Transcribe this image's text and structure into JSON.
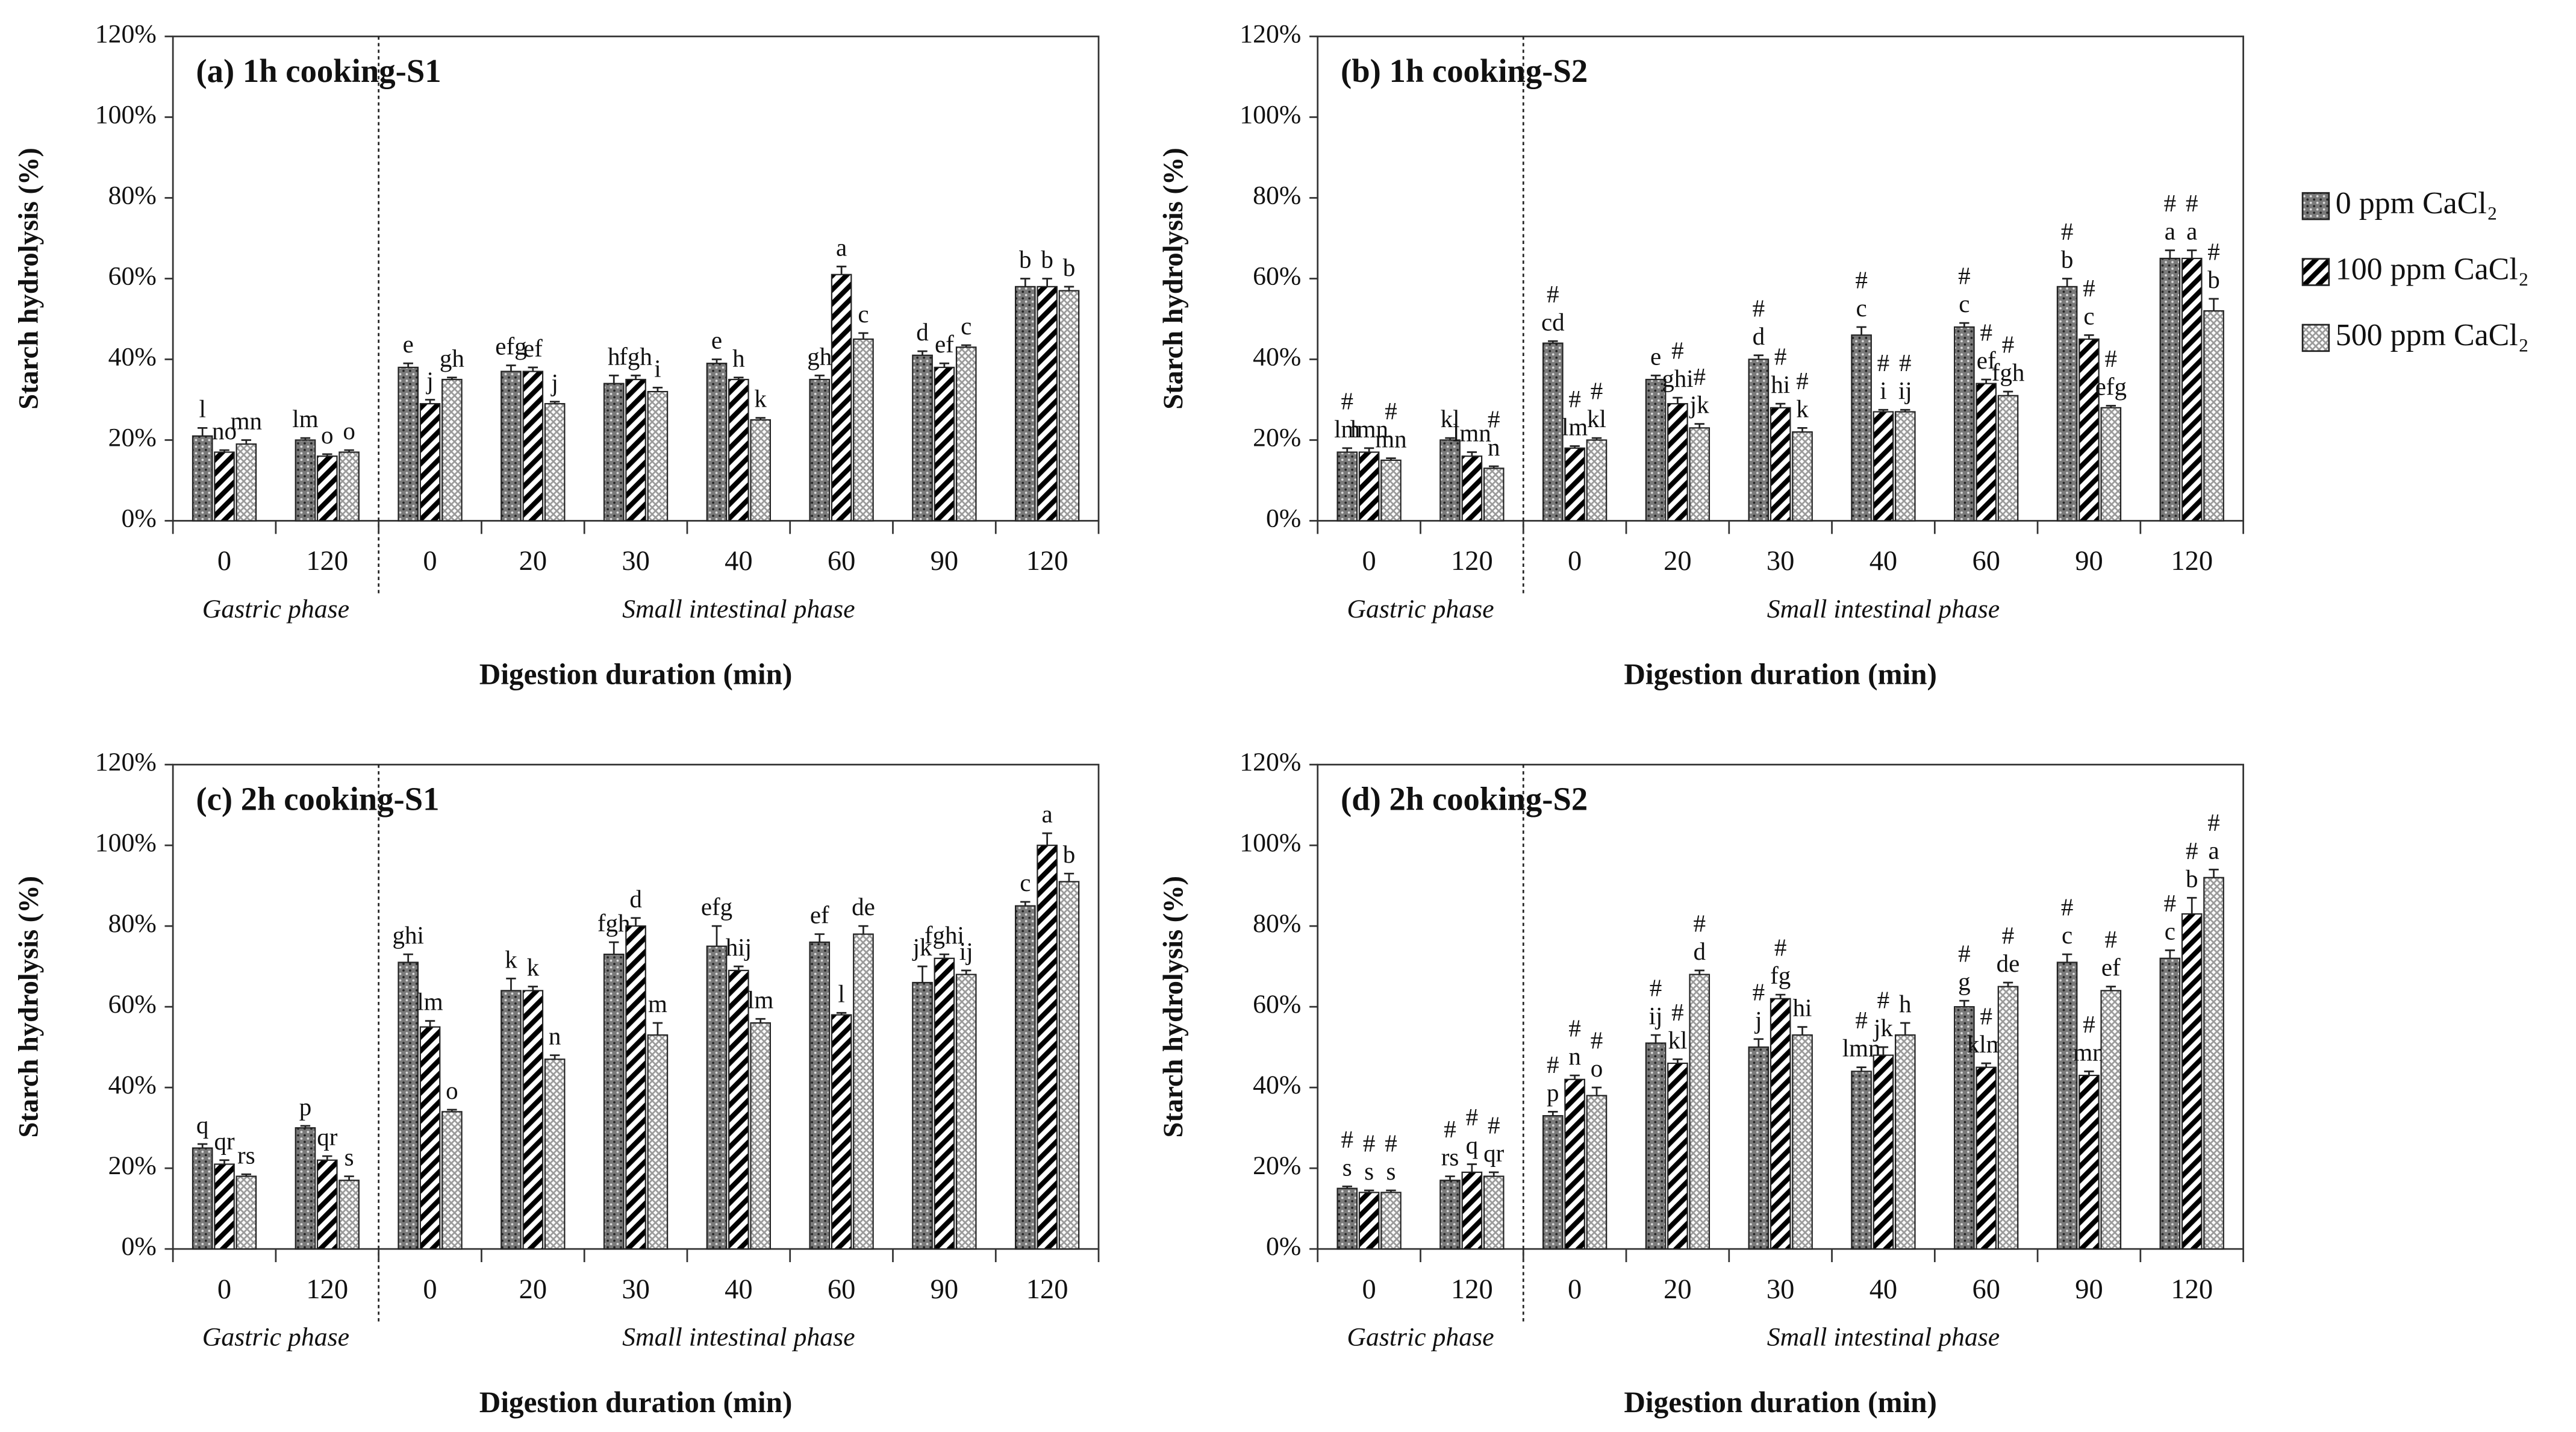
{
  "chart_data": [
    {
      "type": "bar",
      "title": "(a) 1h cooking-S1",
      "x_label": "Digestion duration (min)",
      "y_label": "Starch hydrolysis (%)",
      "groups": [
        {
          "name": "Gastric phase",
          "categories": [
            "0",
            "120"
          ]
        },
        {
          "name": "Small intestinal phase",
          "categories": [
            "0",
            "20",
            "30",
            "40",
            "60",
            "90",
            "120"
          ]
        }
      ],
      "ylim": [
        0,
        120
      ],
      "yticks": [
        {
          "value": 0,
          "label": "0%"
        },
        {
          "value": 20,
          "label": "20%"
        },
        {
          "value": 40,
          "label": "40%"
        },
        {
          "value": 60,
          "label": "60%"
        },
        {
          "value": 80,
          "label": "80%"
        },
        {
          "value": 100,
          "label": "100%"
        },
        {
          "value": 120,
          "label": "120%"
        }
      ],
      "series": [
        {
          "color": "#7a7a7a",
          "values": [
            21,
            20,
            38,
            37,
            34,
            39,
            35,
            41,
            58
          ],
          "errors": [
            2,
            0.5,
            1,
            1.5,
            2,
            1,
            1,
            1,
            2
          ],
          "labels": [
            "l",
            "lm",
            "e",
            "efg",
            "h",
            "e",
            "gh",
            "d",
            "b"
          ]
        },
        {
          "color": "#000000",
          "values": [
            17,
            16,
            29,
            37,
            35,
            35,
            61,
            38,
            58
          ],
          "errors": [
            0.5,
            0.5,
            1,
            1,
            1,
            0.5,
            2,
            1,
            2
          ],
          "labels": [
            "no",
            "o",
            "j",
            "ef",
            "fgh",
            "h",
            "a",
            "ef",
            "b"
          ]
        },
        {
          "color": "#9a9a9a",
          "values": [
            19,
            17,
            35,
            29,
            32,
            25,
            45,
            43,
            57
          ],
          "errors": [
            1,
            0.5,
            0.5,
            0.5,
            1,
            0.5,
            1.5,
            0.5,
            1
          ],
          "labels": [
            "mn",
            "o",
            "gh",
            "j",
            "i",
            "k",
            "c",
            "c",
            "b"
          ]
        }
      ]
    },
    {
      "type": "bar",
      "title": "(b) 1h cooking-S2",
      "x_label": "Digestion duration (min)",
      "y_label": "Starch hydrolysis (%)",
      "legend": "right",
      "groups": [
        {
          "name": "Gastric phase",
          "categories": [
            "0",
            "120"
          ]
        },
        {
          "name": "Small intestinal phase",
          "categories": [
            "0",
            "20",
            "30",
            "40",
            "60",
            "90",
            "120"
          ]
        }
      ],
      "ylim": [
        0,
        120
      ],
      "yticks": [
        {
          "value": 0,
          "label": "0%"
        },
        {
          "value": 20,
          "label": "20%"
        },
        {
          "value": 40,
          "label": "40%"
        },
        {
          "value": 60,
          "label": "60%"
        },
        {
          "value": 80,
          "label": "80%"
        },
        {
          "value": 100,
          "label": "100%"
        },
        {
          "value": 120,
          "label": "120%"
        }
      ],
      "series": [
        {
          "name": "0 ppm CaCl₂",
          "color": "#7a7a7a",
          "values": [
            17,
            20,
            44,
            35,
            40,
            46,
            48,
            58,
            65
          ],
          "errors": [
            1,
            0.5,
            0.5,
            1,
            1,
            2,
            1,
            2,
            2
          ],
          "labels": [
            "lm",
            "kl",
            "cd",
            "e",
            "d",
            "c",
            "c",
            "b",
            "a"
          ],
          "sig": [
            "#",
            null,
            "#",
            null,
            "#",
            "#",
            "#",
            "#",
            "#"
          ]
        },
        {
          "name": "100 ppm CaCl₂",
          "color": "#000000",
          "values": [
            17,
            16,
            18,
            29,
            28,
            27,
            34,
            45,
            65
          ],
          "errors": [
            1,
            1,
            0.5,
            1.5,
            1,
            0.5,
            1,
            1,
            2
          ],
          "labels": [
            "lmn",
            "lmn",
            "lm",
            "ghi",
            "hi",
            "i",
            "ef",
            "c",
            "a"
          ],
          "sig": [
            null,
            null,
            "#",
            "#",
            "#",
            "#",
            "#",
            "#",
            "#"
          ]
        },
        {
          "name": "500 ppm CaCl₂",
          "color": "#9a9a9a",
          "values": [
            15,
            13,
            20,
            23,
            22,
            27,
            31,
            28,
            52
          ],
          "errors": [
            0.5,
            0.5,
            0.5,
            1,
            1,
            0.5,
            1,
            0.5,
            3
          ],
          "labels": [
            "mn",
            "n",
            "kl",
            "jk",
            "k",
            "ij",
            "fgh",
            "efg",
            "b"
          ],
          "sig": [
            "#",
            "#",
            "#",
            "#",
            "#",
            "#",
            "#",
            "#",
            "#"
          ]
        }
      ]
    },
    {
      "type": "bar",
      "title": "(c) 2h cooking-S1",
      "x_label": "Digestion duration (min)",
      "y_label": "Starch hydrolysis (%)",
      "groups": [
        {
          "name": "Gastric phase",
          "categories": [
            "0",
            "120"
          ]
        },
        {
          "name": "Small intestinal phase",
          "categories": [
            "0",
            "20",
            "30",
            "40",
            "60",
            "90",
            "120"
          ]
        }
      ],
      "ylim": [
        0,
        120
      ],
      "yticks": [
        {
          "value": 0,
          "label": "0%"
        },
        {
          "value": 20,
          "label": "20%"
        },
        {
          "value": 40,
          "label": "40%"
        },
        {
          "value": 60,
          "label": "60%"
        },
        {
          "value": 80,
          "label": "80%"
        },
        {
          "value": 100,
          "label": "100%"
        },
        {
          "value": 120,
          "label": "120%"
        }
      ],
      "series": [
        {
          "color": "#7a7a7a",
          "values": [
            25,
            30,
            71,
            64,
            73,
            75,
            76,
            66,
            85
          ],
          "errors": [
            1,
            0.5,
            2,
            3,
            3,
            5,
            2,
            4,
            1
          ],
          "labels": [
            "q",
            "p",
            "ghi",
            "k",
            "fgh",
            "efg",
            "ef",
            "jk",
            "c"
          ]
        },
        {
          "color": "#000000",
          "values": [
            21,
            22,
            55,
            64,
            80,
            69,
            58,
            72,
            100
          ],
          "errors": [
            1,
            1,
            1.5,
            1,
            2,
            1,
            0.5,
            1,
            3
          ],
          "labels": [
            "qr",
            "qr",
            "lm",
            "k",
            "d",
            "hij",
            "l",
            "fghi",
            "a"
          ]
        },
        {
          "color": "#9a9a9a",
          "values": [
            18,
            17,
            34,
            47,
            53,
            56,
            78,
            68,
            91
          ],
          "errors": [
            0.5,
            1,
            0.5,
            1,
            3,
            1,
            2,
            1,
            2
          ],
          "labels": [
            "rs",
            "s",
            "o",
            "n",
            "m",
            "lm",
            "de",
            "ij",
            "b"
          ]
        }
      ]
    },
    {
      "type": "bar",
      "title": "(d) 2h cooking-S2",
      "x_label": "Digestion duration (min)",
      "y_label": "Starch hydrolysis (%)",
      "groups": [
        {
          "name": "Gastric phase",
          "categories": [
            "0",
            "120"
          ]
        },
        {
          "name": "Small intestinal phase",
          "categories": [
            "0",
            "20",
            "30",
            "40",
            "60",
            "90",
            "120"
          ]
        }
      ],
      "ylim": [
        0,
        120
      ],
      "yticks": [
        {
          "value": 0,
          "label": "0%"
        },
        {
          "value": 20,
          "label": "20%"
        },
        {
          "value": 40,
          "label": "40%"
        },
        {
          "value": 60,
          "label": "60%"
        },
        {
          "value": 80,
          "label": "80%"
        },
        {
          "value": 100,
          "label": "100%"
        },
        {
          "value": 120,
          "label": "120%"
        }
      ],
      "series": [
        {
          "color": "#7a7a7a",
          "values": [
            15,
            17,
            33,
            51,
            50,
            44,
            60,
            71,
            72
          ],
          "errors": [
            0.5,
            1,
            1,
            2,
            2,
            1,
            1.5,
            2,
            2
          ],
          "labels": [
            "s",
            "rs",
            "p",
            "ij",
            "j",
            "lmn",
            "g",
            "c",
            "c"
          ],
          "sig": [
            "#",
            "#",
            "#",
            "#",
            "#",
            "#",
            "#",
            "#",
            "#"
          ]
        },
        {
          "color": "#000000",
          "values": [
            14,
            19,
            42,
            46,
            62,
            48,
            45,
            43,
            83
          ],
          "errors": [
            0.5,
            2,
            1,
            1,
            1,
            2,
            1,
            1,
            4
          ],
          "labels": [
            "s",
            "q",
            "n",
            "kl",
            "fg",
            "jk",
            "klm",
            "mn",
            "b"
          ],
          "sig": [
            "#",
            "#",
            "#",
            "#",
            "#",
            "#",
            "#",
            "#",
            "#"
          ]
        },
        {
          "color": "#9a9a9a",
          "values": [
            14,
            18,
            38,
            68,
            53,
            53,
            65,
            64,
            92
          ],
          "errors": [
            0.5,
            1,
            2,
            1,
            2,
            3,
            1,
            1,
            2
          ],
          "labels": [
            "s",
            "qr",
            "o",
            "d",
            "hi",
            "h",
            "de",
            "ef",
            "a"
          ],
          "sig": [
            "#",
            "#",
            "#",
            "#",
            null,
            null,
            "#",
            "#",
            "#"
          ]
        }
      ]
    }
  ]
}
